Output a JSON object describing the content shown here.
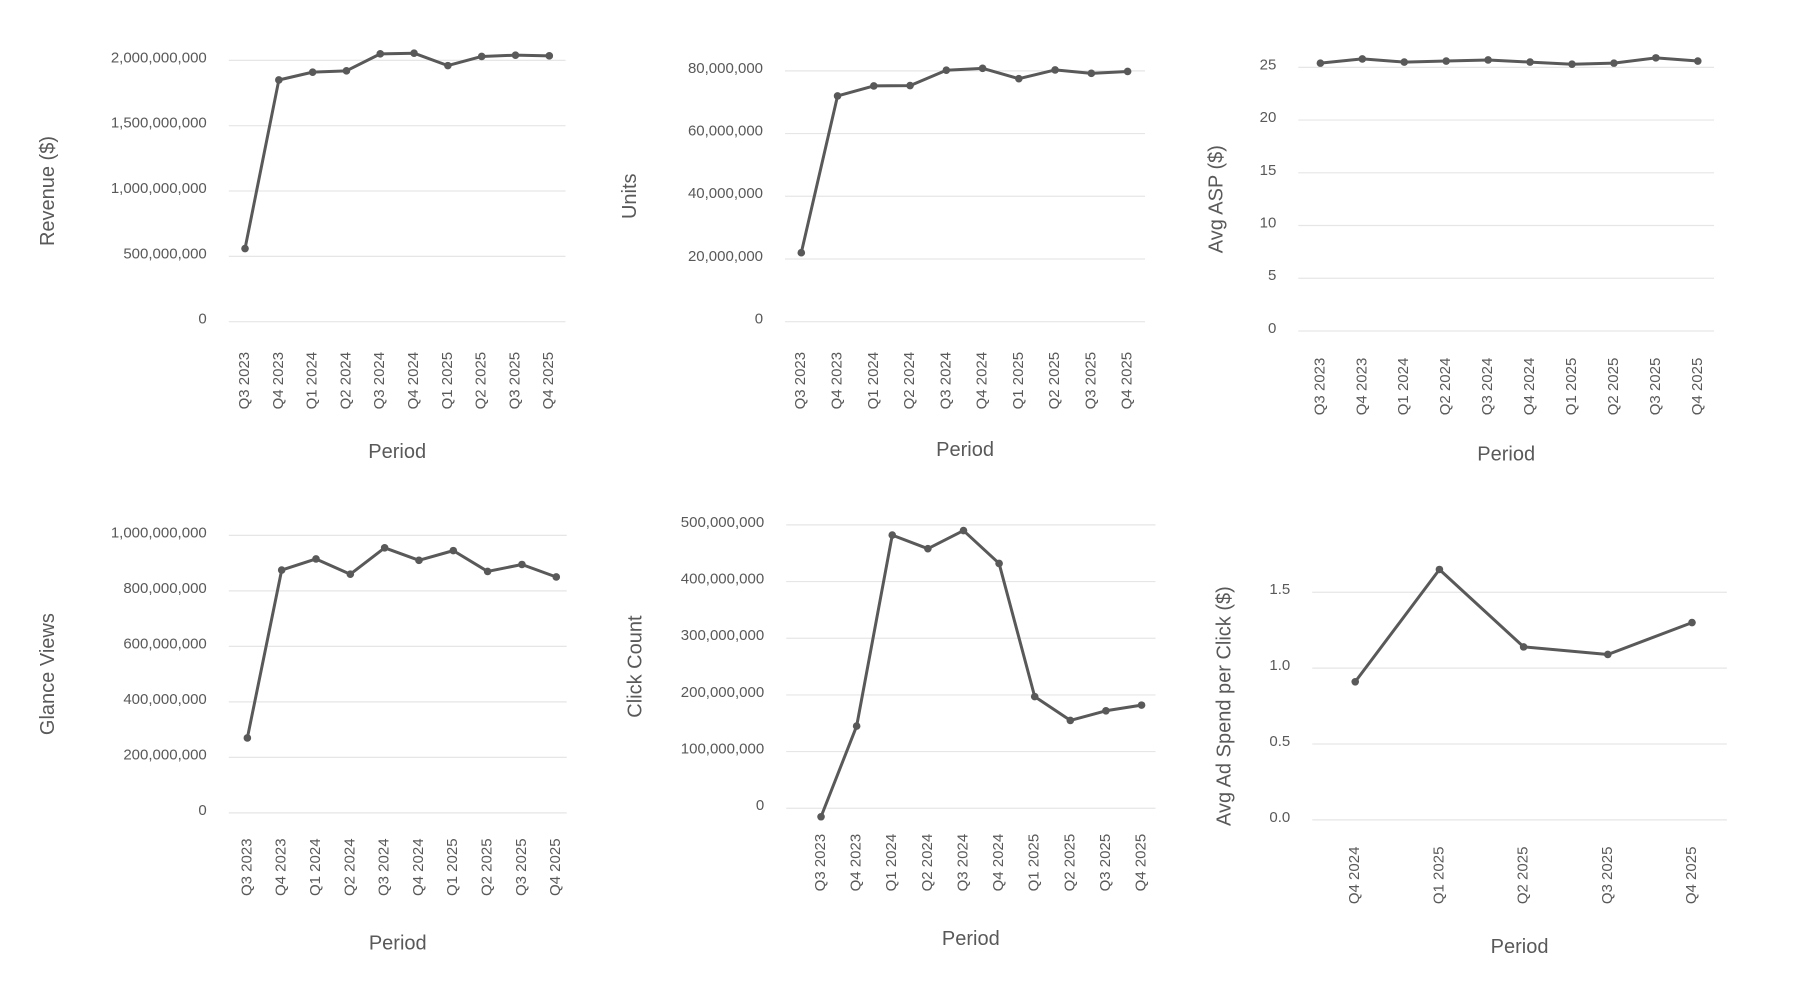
{
  "xlabel": "Period",
  "chart_data": [
    {
      "id": "revenue",
      "type": "line",
      "ylabel": "Revenue ($)",
      "categories": [
        "Q3 2023",
        "Q4 2023",
        "Q1 2024",
        "Q2 2024",
        "Q3 2024",
        "Q4 2024",
        "Q1 2025",
        "Q2 2025",
        "Q3 2025",
        "Q4 2025"
      ],
      "values": [
        560000000,
        1850000000,
        1910000000,
        1920000000,
        2050000000,
        2055000000,
        1960000000,
        2030000000,
        2040000000,
        2035000000
      ],
      "ylim": [
        0,
        2000000000
      ],
      "yticks": [
        0,
        500000000,
        1000000000,
        1500000000,
        2000000000
      ],
      "ytick_labels": [
        "0",
        "500,000,000",
        "1,000,000,000",
        "1,500,000,000",
        "2,000,000,000"
      ],
      "grid": true
    },
    {
      "id": "units",
      "type": "line",
      "ylabel": "Units",
      "categories": [
        "Q3 2023",
        "Q4 2023",
        "Q1 2024",
        "Q2 2024",
        "Q3 2024",
        "Q4 2024",
        "Q1 2025",
        "Q2 2025",
        "Q3 2025",
        "Q4 2025"
      ],
      "values": [
        22000000,
        72000000,
        75200000,
        75300000,
        80200000,
        80800000,
        77500000,
        80300000,
        79200000,
        79800000
      ],
      "ylim": [
        0,
        80000000
      ],
      "yticks": [
        0,
        20000000,
        40000000,
        60000000,
        80000000
      ],
      "ytick_labels": [
        "0",
        "20,000,000",
        "40,000,000",
        "60,000,000",
        "80,000,000"
      ],
      "grid": true
    },
    {
      "id": "asp",
      "type": "line",
      "ylabel": "Avg ASP ($)",
      "categories": [
        "Q3 2023",
        "Q4 2023",
        "Q1 2024",
        "Q2 2024",
        "Q3 2024",
        "Q4 2024",
        "Q1 2025",
        "Q2 2025",
        "Q3 2025",
        "Q4 2025"
      ],
      "values": [
        25.4,
        25.8,
        25.5,
        25.6,
        25.7,
        25.5,
        25.3,
        25.4,
        25.9,
        25.6
      ],
      "ylim": [
        0,
        25
      ],
      "yticks": [
        0,
        5,
        10,
        15,
        20,
        25
      ],
      "ytick_labels": [
        "0",
        "5",
        "10",
        "15",
        "20",
        "25"
      ],
      "grid": true
    },
    {
      "id": "glance",
      "type": "line",
      "ylabel": "Glance Views",
      "categories": [
        "Q3 2023",
        "Q4 2023",
        "Q1 2024",
        "Q2 2024",
        "Q3 2024",
        "Q4 2024",
        "Q1 2025",
        "Q2 2025",
        "Q3 2025",
        "Q4 2025"
      ],
      "values": [
        270000000,
        875000000,
        915000000,
        860000000,
        955000000,
        910000000,
        945000000,
        870000000,
        895000000,
        850000000
      ],
      "ylim": [
        0,
        1000000000
      ],
      "yticks": [
        0,
        200000000,
        400000000,
        600000000,
        800000000,
        1000000000
      ],
      "ytick_labels": [
        "0",
        "200,000,000",
        "400,000,000",
        "600,000,000",
        "800,000,000",
        "1,000,000,000"
      ],
      "grid": true
    },
    {
      "id": "clicks",
      "type": "line",
      "ylabel": "Click Count",
      "categories": [
        "Q3 2023",
        "Q4 2023",
        "Q1 2024",
        "Q2 2024",
        "Q3 2024",
        "Q4 2024",
        "Q1 2025",
        "Q2 2025",
        "Q3 2025",
        "Q4 2025"
      ],
      "values": [
        -15000000,
        145000000,
        482000000,
        458000000,
        490000000,
        432000000,
        197000000,
        155000000,
        172000000,
        182000000
      ],
      "ylim": [
        0,
        500000000
      ],
      "yticks": [
        0,
        100000000,
        200000000,
        300000000,
        400000000,
        500000000
      ],
      "ytick_labels": [
        "0",
        "100,000,000",
        "200,000,000",
        "300,000,000",
        "400,000,000",
        "500,000,000"
      ],
      "grid": true
    },
    {
      "id": "adspend",
      "type": "line",
      "ylabel": "Avg Ad Spend per Click ($)",
      "categories": [
        "Q4 2024",
        "Q1 2025",
        "Q2 2025",
        "Q3 2025",
        "Q4 2025"
      ],
      "values": [
        0.91,
        1.65,
        1.14,
        1.09,
        1.3
      ],
      "ylim": [
        0,
        1.5
      ],
      "yticks": [
        0,
        0.5,
        1.0,
        1.5
      ],
      "ytick_labels": [
        "0.0",
        "0.5",
        "1.0",
        "1.5"
      ],
      "grid": true
    }
  ]
}
